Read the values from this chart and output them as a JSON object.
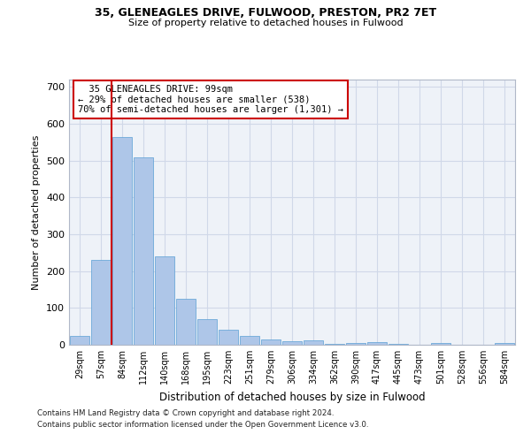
{
  "title1": "35, GLENEAGLES DRIVE, FULWOOD, PRESTON, PR2 7ET",
  "title2": "Size of property relative to detached houses in Fulwood",
  "xlabel": "Distribution of detached houses by size in Fulwood",
  "ylabel": "Number of detached properties",
  "footnote1": "Contains HM Land Registry data © Crown copyright and database right 2024.",
  "footnote2": "Contains public sector information licensed under the Open Government Licence v3.0.",
  "bar_labels": [
    "29sqm",
    "57sqm",
    "84sqm",
    "112sqm",
    "140sqm",
    "168sqm",
    "195sqm",
    "223sqm",
    "251sqm",
    "279sqm",
    "306sqm",
    "334sqm",
    "362sqm",
    "390sqm",
    "417sqm",
    "445sqm",
    "473sqm",
    "501sqm",
    "528sqm",
    "556sqm",
    "584sqm"
  ],
  "bar_heights": [
    25,
    230,
    565,
    510,
    240,
    125,
    70,
    40,
    25,
    14,
    10,
    11,
    3,
    5,
    8,
    3,
    0,
    6,
    0,
    0,
    5
  ],
  "bar_color": "#aec6e8",
  "bar_edgecolor": "#5a9fd4",
  "grid_color": "#d0d8e8",
  "background_color": "#eef2f8",
  "vline_color": "#cc0000",
  "annotation_text": "  35 GLENEAGLES DRIVE: 99sqm\n← 29% of detached houses are smaller (538)\n70% of semi-detached houses are larger (1,301) →",
  "ylim": [
    0,
    720
  ],
  "yticks": [
    0,
    100,
    200,
    300,
    400,
    500,
    600,
    700
  ]
}
